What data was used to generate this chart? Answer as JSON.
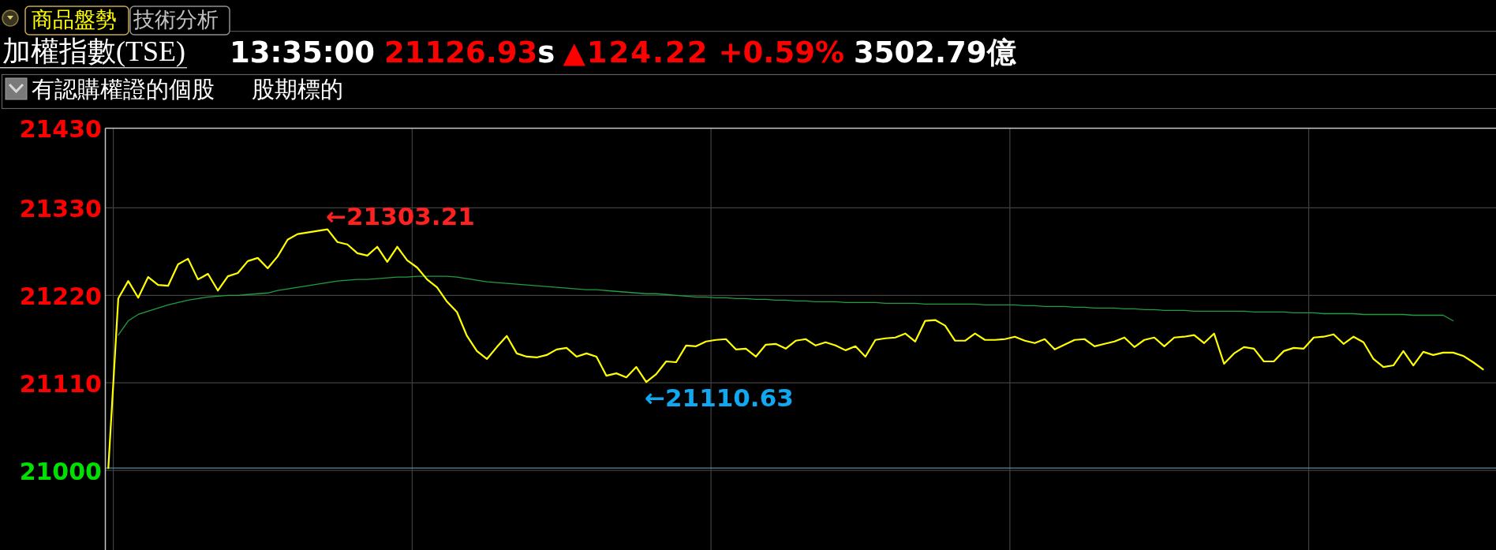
{
  "chart_data": {
    "type": "line",
    "title": "加權指數(TSE)",
    "annotations": [
      "商品盤勢",
      "技術分析",
      "13:35:00",
      "21126.93",
      "s",
      "▲124.22",
      "+0.59%",
      "3502.79億",
      "有認購權證的個股",
      "股期標的",
      "←21303.21",
      "←21110.63"
    ],
    "categories": [
      null,
      null,
      null,
      null,
      null,
      null,
      null,
      null,
      null,
      null,
      null,
      null,
      null,
      null,
      null,
      null,
      null,
      null,
      null,
      null,
      null,
      null,
      null,
      null,
      null,
      null,
      null,
      null,
      null,
      null,
      null,
      null,
      null,
      null,
      null,
      null,
      null,
      null,
      null,
      null,
      null,
      null,
      null,
      null,
      null,
      null,
      null,
      null,
      null,
      null,
      null,
      null,
      null,
      null,
      null,
      null,
      null,
      null,
      null,
      null,
      null,
      null,
      null,
      null,
      null,
      null,
      null,
      null,
      null,
      null,
      null,
      null,
      null,
      null,
      null,
      null,
      null,
      null,
      null,
      null,
      null,
      null,
      null,
      null,
      null,
      null,
      null,
      null,
      null,
      null,
      null,
      null,
      null,
      null,
      null,
      null,
      null,
      null,
      null,
      null,
      null,
      null,
      null,
      null,
      null,
      null,
      null,
      null,
      null,
      null,
      null,
      null,
      null,
      null,
      null,
      null,
      null,
      null,
      null,
      null,
      null,
      null,
      null,
      null,
      null,
      null,
      null,
      null,
      null,
      null,
      null,
      null,
      null,
      null,
      null,
      null,
      null,
      null,
      null,
      null
    ],
    "series": [
      {
        "color": "#ffff00",
        "values": [
          21003,
          21216,
          21238,
          21217,
          21243,
          21233,
          21232,
          21259,
          21266,
          21240,
          21247,
          21226,
          21244,
          21248,
          21263,
          21267,
          21254,
          21269,
          21290,
          21297,
          21299,
          21301,
          21303,
          21287,
          21284,
          21273,
          21270,
          21281,
          21262,
          21281,
          21264,
          21255,
          21240,
          21230,
          21212,
          21199,
          21169,
          21150,
          21140,
          21155,
          21169,
          21147,
          21143,
          21142,
          21145,
          21152,
          21154,
          21143,
          21147,
          21143,
          21119,
          21122,
          21117,
          21130,
          21111,
          21121,
          21137,
          21136,
          21157,
          21156,
          21162,
          21164,
          21165,
          21152,
          21153,
          21143,
          21158,
          21159,
          21153,
          21163,
          21165,
          21157,
          21161,
          21157,
          21151,
          21156,
          21143,
          21164,
          21166,
          21167,
          21172,
          21162,
          21188,
          21189,
          21182,
          21163,
          21163,
          21172,
          21164,
          21164,
          21165,
          21168,
          21163,
          21160,
          21165,
          21152,
          21158,
          21164,
          21165,
          21156,
          21159,
          21162,
          21167,
          21155,
          21164,
          21167,
          21156,
          21167,
          21168,
          21170,
          21160,
          21172,
          21134,
          21147,
          21155,
          21153,
          21137,
          21137,
          21150,
          21154,
          21153,
          21167,
          21168,
          21171,
          21159,
          21168,
          21161,
          21140,
          21130,
          21132,
          21150,
          21132,
          21149,
          21145,
          21148,
          21148,
          21144,
          21136,
          21127,
          null
        ]
      },
      {
        "color": "#1f9f3f",
        "values": [
          null,
          21170,
          21188,
          21196,
          21200,
          21204,
          21208,
          21211,
          21214,
          21216,
          21218,
          21219,
          21220,
          21220,
          21221,
          21222,
          21223,
          21226,
          21228,
          21230,
          21232,
          21234,
          21236,
          21238,
          21239,
          21240,
          21240,
          21241,
          21242,
          21243,
          21243,
          21244,
          21244,
          21244,
          21244,
          21243,
          21241,
          21239,
          21237,
          21236,
          21235,
          21234,
          21233,
          21232,
          21231,
          21230,
          21229,
          21228,
          21227,
          21227,
          21226,
          21225,
          21224,
          21223,
          21222,
          21222,
          21221,
          21220,
          21219,
          21218,
          21218,
          21217,
          21217,
          21216,
          21216,
          21215,
          21215,
          21214,
          21214,
          21213,
          21213,
          21212,
          21212,
          21212,
          21211,
          21211,
          21211,
          21211,
          21210,
          21210,
          21210,
          21210,
          21209,
          21209,
          21209,
          21209,
          21209,
          21209,
          21208,
          21208,
          21208,
          21208,
          21207,
          21207,
          21206,
          21206,
          21206,
          21205,
          21205,
          21204,
          21204,
          21204,
          21203,
          21203,
          21202,
          21202,
          21201,
          21201,
          21201,
          21200,
          21200,
          21200,
          21200,
          21200,
          21200,
          21199,
          21199,
          21199,
          21199,
          21198,
          21198,
          21198,
          21197,
          21197,
          21197,
          21197,
          21196,
          21196,
          21196,
          21196,
          21196,
          21195,
          21195,
          21195,
          21195,
          21188,
          null,
          null,
          null,
          null
        ]
      }
    ],
    "ylim": [
      20900,
      21430
    ],
    "yticks": [
      21000,
      21110,
      21220,
      21330,
      21430
    ],
    "ref_lines": [
      {
        "axis": "y",
        "value": 21003,
        "color": "#5a8a9a"
      }
    ],
    "grid": true,
    "tick_labels": "y"
  }
}
